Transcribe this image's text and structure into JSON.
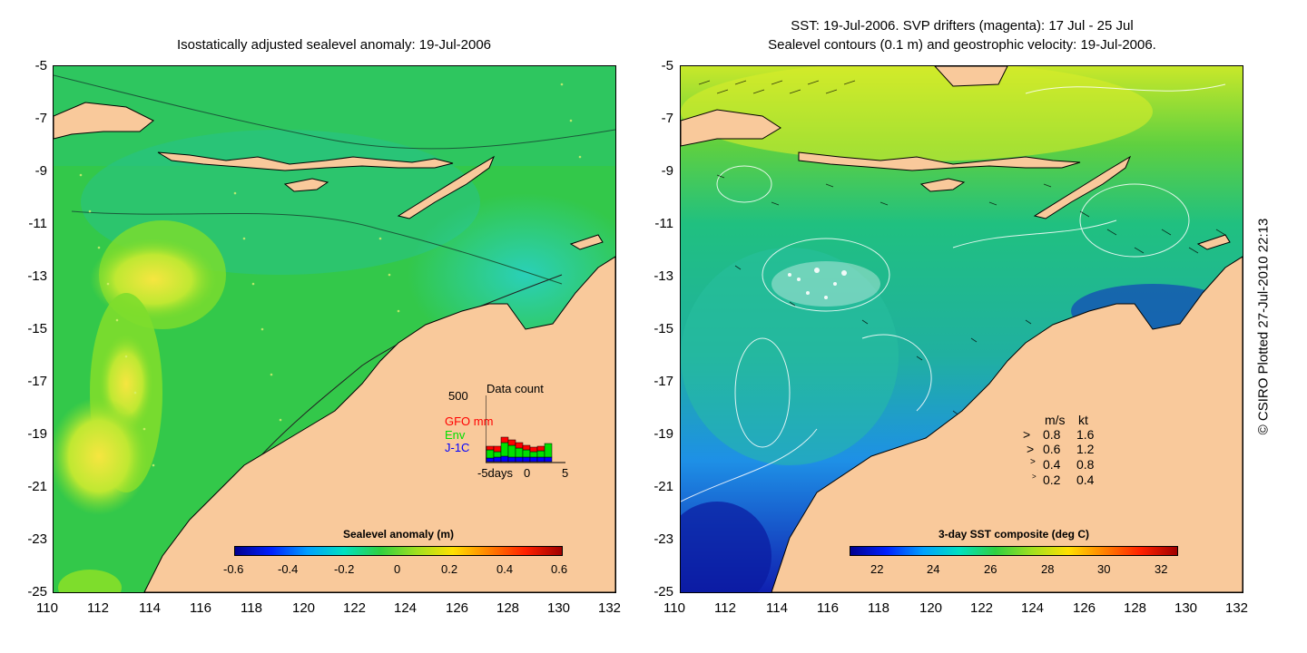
{
  "left_panel": {
    "title": "Isostatically adjusted sealevel anomaly: 19-Jul-2006",
    "colorbar": {
      "label": "Sealevel anomaly (m)",
      "ticks": [
        "-0.6",
        "-0.4",
        "-0.2",
        "0",
        "0.2",
        "0.4",
        "0.6"
      ],
      "range": [
        -0.6,
        0.6
      ]
    },
    "data_count": {
      "title": "Data count",
      "y_max_label": "500",
      "legend": [
        {
          "label": "GFO mm",
          "color": "#ff0000"
        },
        {
          "label": "Env",
          "color": "#00e000"
        },
        {
          "label": "J-1C",
          "color": "#0000ff"
        }
      ],
      "x_labels": [
        "-5days",
        "0",
        "5"
      ]
    }
  },
  "right_panel": {
    "title_line1": "SST: 19-Jul-2006. SVP drifters (magenta): 17 Jul - 25 Jul",
    "title_line2": "Sealevel contours (0.1 m) and geostrophic velocity: 19-Jul-2006.",
    "colorbar": {
      "label": "3-day SST composite (deg C)",
      "ticks": [
        "22",
        "24",
        "26",
        "28",
        "30",
        "32"
      ],
      "range": [
        21,
        32.5
      ]
    },
    "speed_key": {
      "header_ms": "m/s",
      "header_kt": "kt",
      "rows": [
        {
          "ms": "0.8",
          "kt": "1.6"
        },
        {
          "ms": "0.6",
          "kt": "1.2"
        },
        {
          "ms": "0.4",
          "kt": "0.8"
        },
        {
          "ms": "0.2",
          "kt": "0.4"
        }
      ]
    }
  },
  "axes": {
    "y_labels": [
      "-5",
      "-7",
      "-9",
      "-11",
      "-13",
      "-15",
      "-17",
      "-19",
      "-21",
      "-23",
      "-25"
    ],
    "x_labels": [
      "110",
      "112",
      "114",
      "116",
      "118",
      "120",
      "122",
      "124",
      "126",
      "128",
      "130",
      "132"
    ],
    "lat_range": [
      -25,
      -5
    ],
    "lon_range": [
      110,
      132
    ]
  },
  "copyright": "© CSIRO Plotted 27-Jul-2010 22:13",
  "colors": {
    "land": "#f9c99b",
    "sea_anomaly_base": "#22cc44",
    "sst_warm": "#c8e82a",
    "sst_cool": "#1e90e6"
  }
}
